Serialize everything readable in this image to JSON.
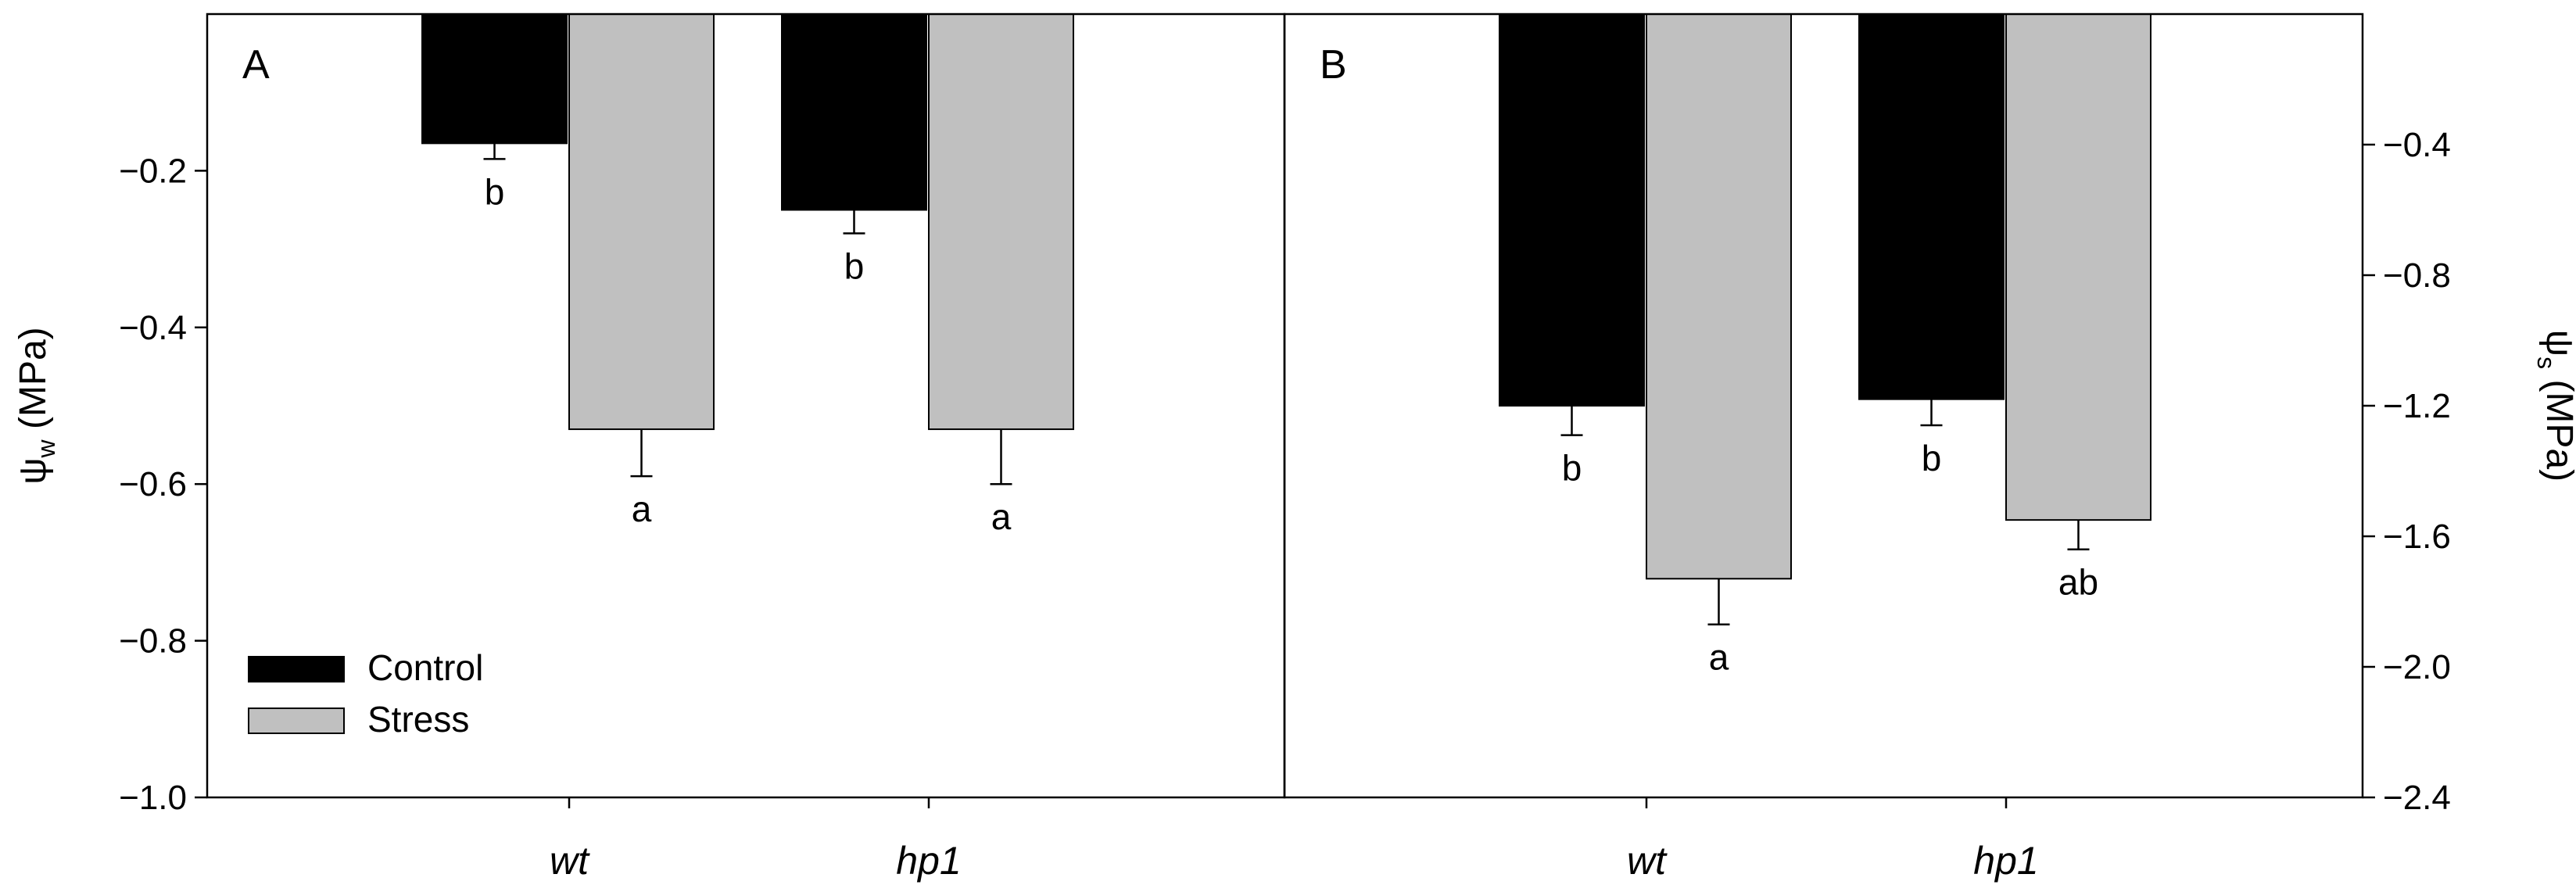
{
  "chart_data": [
    {
      "type": "bar",
      "panel_label": "A",
      "ylabel": "ψw (MPa)",
      "ylabel_symbol": "ψ",
      "ylabel_sub": "w",
      "ylabel_unit": "(MPa)",
      "ylim": [
        -1.0,
        0.0
      ],
      "yticks": [
        -0.2,
        -0.4,
        -0.6,
        -0.8,
        -1.0
      ],
      "ytick_labels": [
        "−0.2",
        "−0.4",
        "−0.6",
        "−0.8",
        "−1.0"
      ],
      "yaxis_side": "left",
      "categories": [
        "wt",
        "hp1"
      ],
      "series": [
        {
          "name": "Control",
          "color": "#000000",
          "values": [
            -0.165,
            -0.25
          ],
          "errors": [
            0.02,
            0.03
          ],
          "letters": [
            "b",
            "b"
          ]
        },
        {
          "name": "Stress",
          "color": "#c0c0c0",
          "values": [
            -0.53,
            -0.53
          ],
          "errors": [
            0.06,
            0.07
          ],
          "letters": [
            "a",
            "a"
          ]
        }
      ],
      "legend": [
        "Control",
        "Stress"
      ],
      "legend_position": "bottom-left",
      "grid": false
    },
    {
      "type": "bar",
      "panel_label": "B",
      "ylabel": "ψs (MPa)",
      "ylabel_symbol": "ψ",
      "ylabel_sub": "s",
      "ylabel_unit": "(MPa)",
      "ylim": [
        -2.4,
        0.0
      ],
      "yticks": [
        -0.4,
        -0.8,
        -1.2,
        -1.6,
        -2.0,
        -2.4
      ],
      "ytick_labels": [
        "−0.4",
        "−0.8",
        "−1.2",
        "−1.6",
        "−2.0",
        "−2.4"
      ],
      "yaxis_side": "right",
      "categories": [
        "wt",
        "hp1"
      ],
      "series": [
        {
          "name": "Control",
          "color": "#000000",
          "values": [
            -1.2,
            -1.18
          ],
          "errors": [
            0.09,
            0.08
          ],
          "letters": [
            "b",
            "b"
          ]
        },
        {
          "name": "Stress",
          "color": "#c0c0c0",
          "values": [
            -1.73,
            -1.55
          ],
          "errors": [
            0.14,
            0.09
          ],
          "letters": [
            "a",
            "ab"
          ]
        }
      ],
      "grid": false
    }
  ]
}
